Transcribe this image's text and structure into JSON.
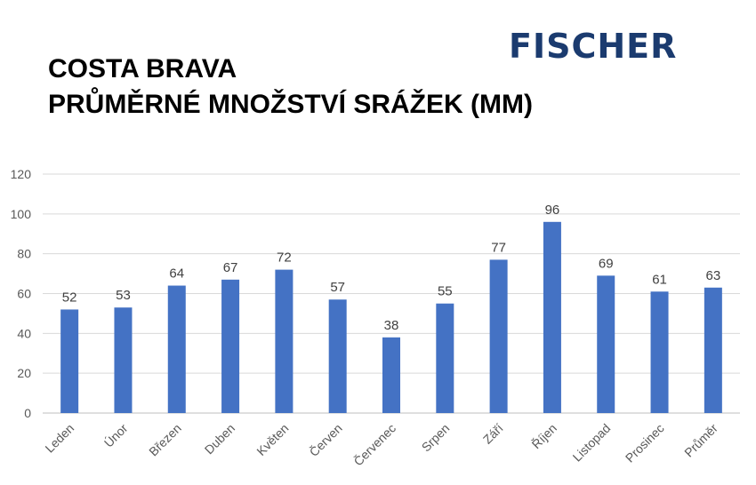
{
  "logo": {
    "text": "FISCHER",
    "color": "#1b3b6f"
  },
  "chart_data": {
    "type": "bar",
    "title": [
      "COSTA BRAVA",
      "PRŮMĚRNÉ MNOŽSTVÍ SRÁŽEK (MM)"
    ],
    "xlabel": "",
    "ylabel": "",
    "categories": [
      "Leden",
      "Únor",
      "Březen",
      "Duben",
      "Květen",
      "Červen",
      "Červenec",
      "Srpen",
      "Září",
      "Říjen",
      "Listopad",
      "Prosinec",
      "Průměr"
    ],
    "values": [
      52,
      53,
      64,
      67,
      72,
      57,
      38,
      55,
      77,
      96,
      69,
      61,
      63
    ],
    "ylim": [
      0,
      120
    ],
    "yticks": [
      0,
      20,
      40,
      60,
      80,
      100,
      120
    ],
    "bar_color": "#4472c4",
    "grid": true,
    "data_labels": true
  }
}
